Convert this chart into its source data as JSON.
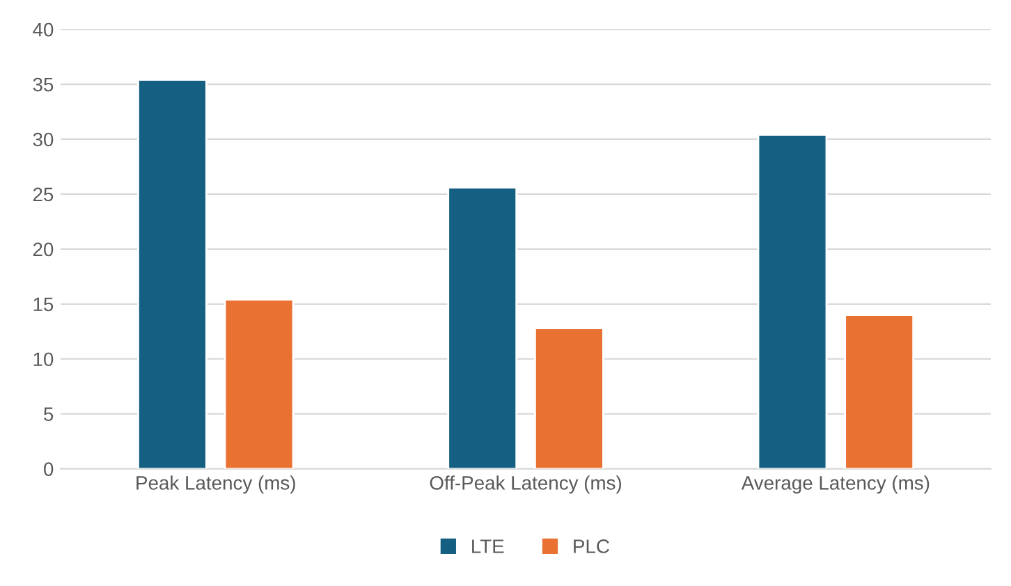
{
  "chart_data": {
    "type": "bar",
    "categories": [
      "Peak Latency (ms)",
      "Off-Peak Latency (ms)",
      "Average Latency (ms)"
    ],
    "series": [
      {
        "name": "LTE",
        "color": "#156082",
        "values": [
          35.4,
          25.6,
          30.4
        ]
      },
      {
        "name": "PLC",
        "color": "#e97132",
        "values": [
          15.4,
          12.8,
          14.0
        ]
      }
    ],
    "ylim": [
      0,
      40
    ],
    "yticks": [
      0,
      5,
      10,
      15,
      20,
      25,
      30,
      35,
      40
    ],
    "grid": "y",
    "legend": "bottom"
  }
}
